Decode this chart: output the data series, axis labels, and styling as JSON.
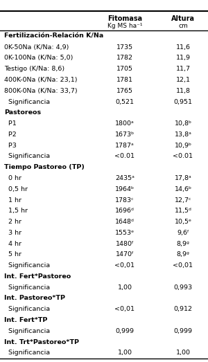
{
  "title_col1": "Fitomasa",
  "subtitle_col1": "Kg MS ha⁻¹",
  "title_col2": "Altura",
  "subtitle_col2": "cm",
  "rows": [
    {
      "label": "Fertilización-Relación K/Na",
      "v1": "",
      "v2": "",
      "bold": true,
      "indent": 0
    },
    {
      "label": "0K-50Na (K/Na: 4,9)",
      "v1": "1735",
      "v2": "11,6",
      "bold": false,
      "indent": 0
    },
    {
      "label": "0K-100Na (K/Na: 5,0)",
      "v1": "1782",
      "v2": "11,9",
      "bold": false,
      "indent": 0
    },
    {
      "label": "Testigo (K/Na: 8,6)",
      "v1": "1705",
      "v2": "11,7",
      "bold": false,
      "indent": 0
    },
    {
      "label": "400K-0Na (K/Na: 23,1)",
      "v1": "1781",
      "v2": "12,1",
      "bold": false,
      "indent": 0
    },
    {
      "label": "800K-0Na (K/Na: 33,7)",
      "v1": "1765",
      "v2": "11,8",
      "bold": false,
      "indent": 0
    },
    {
      "label": "  Significancia",
      "v1": "0,521",
      "v2": "0,951",
      "bold": false,
      "indent": 1
    },
    {
      "label": "Pastoreos",
      "v1": "",
      "v2": "",
      "bold": true,
      "indent": 0
    },
    {
      "label": "  P1",
      "v1": "1800ᵃ",
      "v2": "10,8ᵇ",
      "bold": false,
      "indent": 1
    },
    {
      "label": "  P2",
      "v1": "1673ᵇ",
      "v2": "13,8ᵃ",
      "bold": false,
      "indent": 1
    },
    {
      "label": "  P3",
      "v1": "1787ᵃ",
      "v2": "10,9ᵇ",
      "bold": false,
      "indent": 1
    },
    {
      "label": "  Significancia",
      "v1": "<0.01",
      "v2": "<0.01",
      "bold": false,
      "indent": 1
    },
    {
      "label": "Tiempo Pastoreo (TP)",
      "v1": "",
      "v2": "",
      "bold": true,
      "indent": 0
    },
    {
      "label": "  0 hr",
      "v1": "2435ᵃ",
      "v2": "17,8ᵃ",
      "bold": false,
      "indent": 1
    },
    {
      "label": "  0,5 hr",
      "v1": "1964ᵇ",
      "v2": "14,6ᵇ",
      "bold": false,
      "indent": 1
    },
    {
      "label": "  1 hr",
      "v1": "1783ᶜ",
      "v2": "12,7ᶜ",
      "bold": false,
      "indent": 1
    },
    {
      "label": "  1,5 hr",
      "v1": "1696ᵈ",
      "v2": "11,5ᵈ",
      "bold": false,
      "indent": 1
    },
    {
      "label": "  2 hr",
      "v1": "1648ᵈ",
      "v2": "10,5ᵉ",
      "bold": false,
      "indent": 1
    },
    {
      "label": "  3 hr",
      "v1": "1553ᵉ",
      "v2": "9,6ᶠ",
      "bold": false,
      "indent": 1
    },
    {
      "label": "  4 hr",
      "v1": "1480ᶠ",
      "v2": "8,9ᵍ",
      "bold": false,
      "indent": 1
    },
    {
      "label": "  5 hr",
      "v1": "1470ᶠ",
      "v2": "8,9ᵍ",
      "bold": false,
      "indent": 1
    },
    {
      "label": "  Significancia",
      "v1": "<0,01",
      "v2": "<0,01",
      "bold": false,
      "indent": 1
    },
    {
      "label": "Int. Fert*Pastoreo",
      "v1": "",
      "v2": "",
      "bold": true,
      "indent": 0
    },
    {
      "label": "  Significancia",
      "v1": "1,00",
      "v2": "0,993",
      "bold": false,
      "indent": 1
    },
    {
      "label": "Int. Pastoreo*TP",
      "v1": "",
      "v2": "",
      "bold": true,
      "indent": 0
    },
    {
      "label": "  Significancia",
      "v1": "<0,01",
      "v2": "0,912",
      "bold": false,
      "indent": 1
    },
    {
      "label": "Int. Fert*TP",
      "v1": "",
      "v2": "",
      "bold": true,
      "indent": 0
    },
    {
      "label": "  Significancia",
      "v1": "0,999",
      "v2": "0,999",
      "bold": false,
      "indent": 1
    },
    {
      "label": "Int. Trt*Pastoreo*TP",
      "v1": "",
      "v2": "",
      "bold": true,
      "indent": 0
    },
    {
      "label": "  Significancia",
      "v1": "1,00",
      "v2": "1,00",
      "bold": false,
      "indent": 1
    }
  ],
  "bg_color": "#ffffff",
  "text_color": "#000000",
  "header_line_color": "#000000",
  "figsize": [
    3.0,
    5.23
  ],
  "dpi": 100
}
